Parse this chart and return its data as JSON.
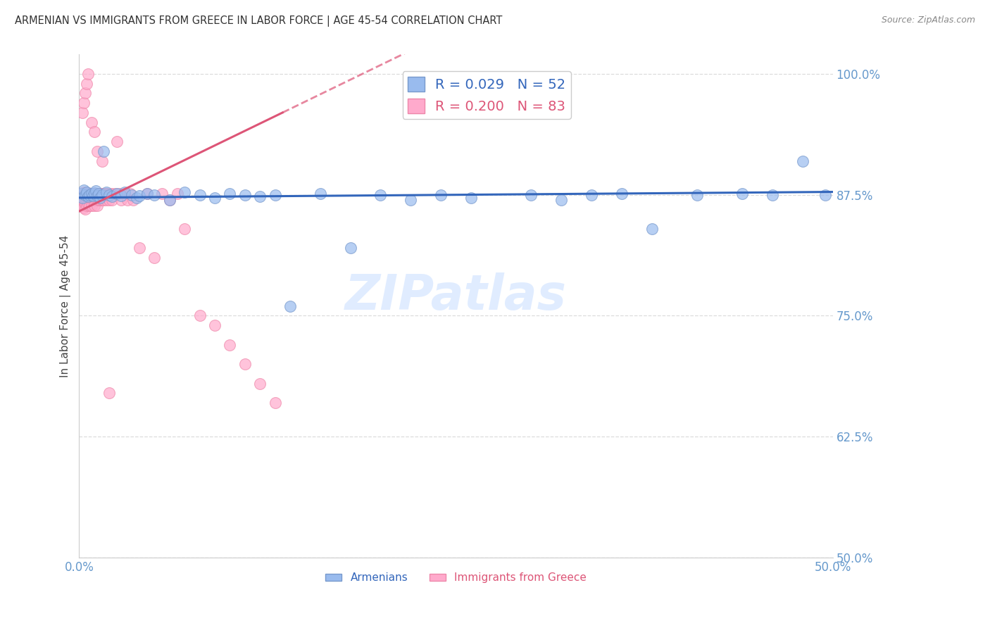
{
  "title": "ARMENIAN VS IMMIGRANTS FROM GREECE IN LABOR FORCE | AGE 45-54 CORRELATION CHART",
  "source": "Source: ZipAtlas.com",
  "ylabel": "In Labor Force | Age 45-54",
  "xlim": [
    0.0,
    0.5
  ],
  "ylim": [
    0.5,
    1.02
  ],
  "yticks": [
    0.5,
    0.625,
    0.75,
    0.875,
    1.0
  ],
  "ytick_labels": [
    "50.0%",
    "62.5%",
    "75.0%",
    "87.5%",
    "100.0%"
  ],
  "xticks": [
    0.0,
    0.1,
    0.2,
    0.3,
    0.4,
    0.5
  ],
  "xtick_labels": [
    "0.0%",
    "",
    "",
    "",
    "",
    "50.0%"
  ],
  "blue_R": 0.029,
  "blue_N": 52,
  "pink_R": 0.2,
  "pink_N": 83,
  "blue_color": "#99BBEE",
  "pink_color": "#FFAACC",
  "blue_edge_color": "#7799CC",
  "pink_edge_color": "#EE88AA",
  "blue_line_color": "#3366BB",
  "pink_line_color": "#DD5577",
  "axis_color": "#6699CC",
  "title_color": "#333333",
  "watermark": "ZIPatlas",
  "grid_color": "#DDDDDD",
  "blue_scatter_x": [
    0.001,
    0.002,
    0.003,
    0.004,
    0.005,
    0.006,
    0.007,
    0.008,
    0.009,
    0.01,
    0.011,
    0.012,
    0.013,
    0.014,
    0.015,
    0.016,
    0.018,
    0.02,
    0.022,
    0.025,
    0.028,
    0.03,
    0.035,
    0.038,
    0.04,
    0.045,
    0.05,
    0.06,
    0.07,
    0.08,
    0.09,
    0.1,
    0.11,
    0.12,
    0.13,
    0.14,
    0.16,
    0.18,
    0.2,
    0.22,
    0.24,
    0.26,
    0.3,
    0.32,
    0.34,
    0.36,
    0.38,
    0.41,
    0.44,
    0.46,
    0.48,
    0.495
  ],
  "blue_scatter_y": [
    0.876,
    0.872,
    0.88,
    0.875,
    0.878,
    0.873,
    0.875,
    0.876,
    0.874,
    0.877,
    0.879,
    0.874,
    0.876,
    0.872,
    0.875,
    0.92,
    0.878,
    0.875,
    0.873,
    0.876,
    0.874,
    0.878,
    0.875,
    0.872,
    0.874,
    0.876,
    0.875,
    0.87,
    0.878,
    0.875,
    0.872,
    0.876,
    0.875,
    0.873,
    0.875,
    0.76,
    0.876,
    0.82,
    0.875,
    0.87,
    0.875,
    0.872,
    0.875,
    0.87,
    0.875,
    0.876,
    0.84,
    0.875,
    0.876,
    0.875,
    0.91,
    0.875
  ],
  "pink_scatter_x": [
    0.001,
    0.001,
    0.001,
    0.002,
    0.002,
    0.002,
    0.003,
    0.003,
    0.003,
    0.003,
    0.004,
    0.004,
    0.004,
    0.004,
    0.005,
    0.005,
    0.005,
    0.006,
    0.006,
    0.006,
    0.007,
    0.007,
    0.007,
    0.008,
    0.008,
    0.008,
    0.009,
    0.009,
    0.01,
    0.01,
    0.01,
    0.011,
    0.011,
    0.012,
    0.012,
    0.012,
    0.013,
    0.013,
    0.014,
    0.014,
    0.015,
    0.015,
    0.016,
    0.016,
    0.017,
    0.018,
    0.018,
    0.019,
    0.02,
    0.02,
    0.022,
    0.022,
    0.024,
    0.025,
    0.027,
    0.028,
    0.03,
    0.032,
    0.034,
    0.036,
    0.04,
    0.045,
    0.05,
    0.055,
    0.06,
    0.065,
    0.07,
    0.08,
    0.09,
    0.1,
    0.11,
    0.12,
    0.13,
    0.002,
    0.003,
    0.004,
    0.005,
    0.006,
    0.008,
    0.01,
    0.012,
    0.015,
    0.02
  ],
  "pink_scatter_y": [
    0.876,
    0.872,
    0.868,
    0.875,
    0.87,
    0.864,
    0.878,
    0.873,
    0.868,
    0.862,
    0.876,
    0.871,
    0.866,
    0.86,
    0.876,
    0.87,
    0.864,
    0.877,
    0.871,
    0.865,
    0.876,
    0.87,
    0.864,
    0.876,
    0.87,
    0.864,
    0.876,
    0.87,
    0.876,
    0.87,
    0.864,
    0.876,
    0.87,
    0.876,
    0.87,
    0.864,
    0.876,
    0.87,
    0.876,
    0.87,
    0.876,
    0.87,
    0.876,
    0.87,
    0.876,
    0.876,
    0.87,
    0.876,
    0.876,
    0.87,
    0.876,
    0.87,
    0.876,
    0.93,
    0.876,
    0.87,
    0.876,
    0.87,
    0.876,
    0.87,
    0.82,
    0.876,
    0.81,
    0.876,
    0.87,
    0.876,
    0.84,
    0.75,
    0.74,
    0.72,
    0.7,
    0.68,
    0.66,
    0.96,
    0.97,
    0.98,
    0.99,
    1.0,
    0.95,
    0.94,
    0.92,
    0.91,
    0.67
  ]
}
